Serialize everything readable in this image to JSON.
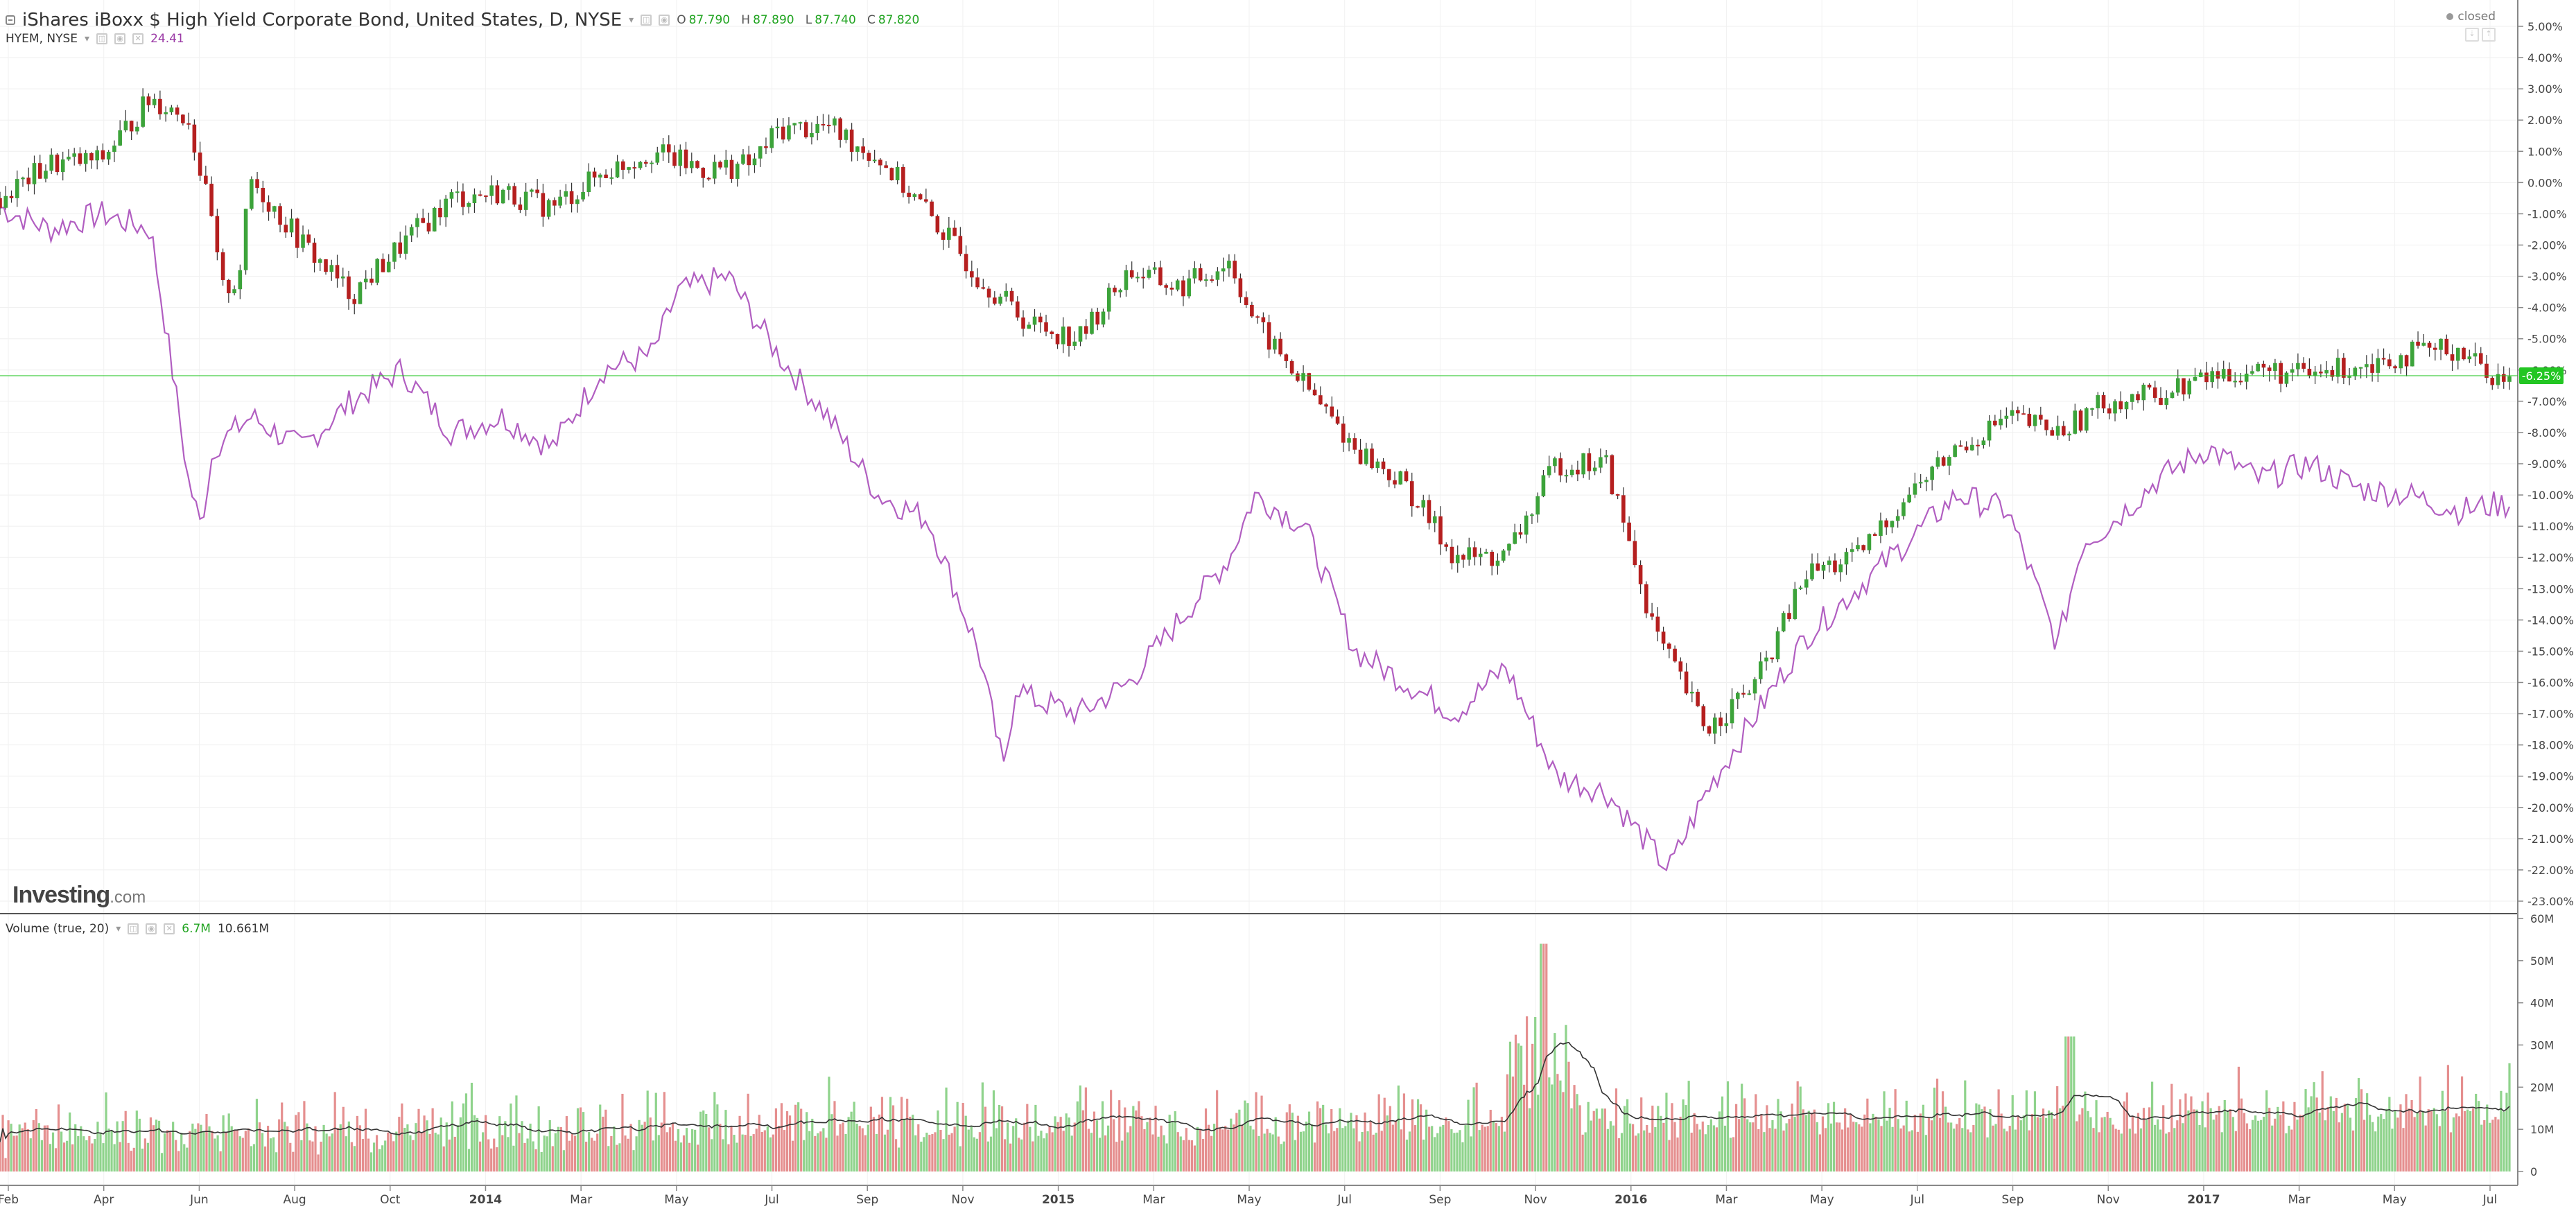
{
  "header": {
    "title": "iShares iBoxx $ High Yield Corporate Bond, United States, D, NYSE",
    "ohlc": [
      {
        "key": "O",
        "value": "87.790"
      },
      {
        "key": "H",
        "value": "87.890"
      },
      {
        "key": "L",
        "value": "87.740"
      },
      {
        "key": "C",
        "value": "87.820"
      }
    ],
    "compare_symbol": "HYEM, NYSE",
    "compare_value": "24.41",
    "status": "closed"
  },
  "volume_panel": {
    "label": "Volume (true, 20)",
    "value": "6.7M",
    "ma_value": "10.661M"
  },
  "branding": {
    "logo": "Investing",
    "logo_suffix": ".com"
  },
  "colors": {
    "up": "#3ca33a",
    "down": "#b51f1f",
    "compare_line": "#b15ec1",
    "vol_up": "#8fd38c",
    "vol_down": "#e58f8f",
    "last_price_bg": "#23c623"
  },
  "chart_data": {
    "type": "line",
    "price_axis": {
      "ticks": [
        "5.00%",
        "4.00%",
        "3.00%",
        "2.00%",
        "1.00%",
        "0.00%",
        "-1.00%",
        "-2.00%",
        "-3.00%",
        "-4.00%",
        "-5.00%",
        "-6.00%",
        "-7.00%",
        "-8.00%",
        "-9.00%",
        "-10.00%",
        "-11.00%",
        "-12.00%",
        "-13.00%",
        "-14.00%",
        "-15.00%",
        "-16.00%",
        "-17.00%",
        "-18.00%",
        "-19.00%",
        "-20.00%",
        "-21.00%",
        "-22.00%",
        "-23.00%"
      ],
      "last_label": "-6.25%",
      "last_value": -6.25
    },
    "volume_axis": {
      "ticks": [
        "60M",
        "50M",
        "40M",
        "30M",
        "20M",
        "10M",
        "0"
      ]
    },
    "time_axis": {
      "labels": [
        "Feb",
        "Apr",
        "Jun",
        "Aug",
        "Oct",
        "2014",
        "Mar",
        "May",
        "Jul",
        "Sep",
        "Nov",
        "2015",
        "Mar",
        "May",
        "Jul",
        "Sep",
        "Nov",
        "2016",
        "Mar",
        "May",
        "Jul",
        "Sep",
        "Nov",
        "2017",
        "Mar",
        "May",
        "Jul"
      ],
      "bold": [
        "2014",
        "2015",
        "2016",
        "2017"
      ]
    },
    "series": [
      {
        "name": "iShares iBoxx $ High Yield Corporate Bond",
        "style": "candlestick",
        "x": [
          0,
          0.02,
          0.04,
          0.06,
          0.075,
          0.085,
          0.088,
          0.095,
          0.1,
          0.12,
          0.14,
          0.16,
          0.18,
          0.2,
          0.22,
          0.24,
          0.26,
          0.28,
          0.3,
          0.31,
          0.33,
          0.35,
          0.37,
          0.39,
          0.41,
          0.43,
          0.45,
          0.47,
          0.49,
          0.5,
          0.52,
          0.54,
          0.56,
          0.58,
          0.6,
          0.62,
          0.64,
          0.66,
          0.68,
          0.7,
          0.72,
          0.74,
          0.76,
          0.78,
          0.8,
          0.82,
          0.84,
          0.86,
          0.88,
          0.9,
          0.92,
          0.94,
          0.96,
          0.98,
          0.995
        ],
        "values": [
          -0.5,
          0.6,
          0.7,
          2.7,
          2.1,
          -1.5,
          -3.5,
          -3.1,
          0.1,
          -1.9,
          -3.6,
          -2.0,
          -0.5,
          -0.3,
          -0.8,
          0.3,
          1.0,
          0.4,
          0.6,
          1.7,
          1.8,
          0.8,
          -1.0,
          -3.0,
          -4.5,
          -5.0,
          -2.8,
          -3.4,
          -2.5,
          -4.5,
          -6.5,
          -8.5,
          -9.7,
          -12.0,
          -12.0,
          -9.0,
          -9.0,
          -14.5,
          -17.5,
          -16.0,
          -12.5,
          -12.0,
          -10.0,
          -8.5,
          -7.5,
          -8.0,
          -7.0,
          -6.8,
          -6.2,
          -6.0,
          -6.2,
          -5.8,
          -5.5,
          -5.3,
          -6.25
        ]
      },
      {
        "name": "HYEM, NYSE",
        "style": "line",
        "x": [
          0,
          0.02,
          0.04,
          0.06,
          0.07,
          0.075,
          0.08,
          0.085,
          0.1,
          0.12,
          0.14,
          0.16,
          0.18,
          0.2,
          0.22,
          0.24,
          0.26,
          0.27,
          0.29,
          0.31,
          0.33,
          0.35,
          0.37,
          0.39,
          0.4,
          0.405,
          0.41,
          0.43,
          0.45,
          0.47,
          0.49,
          0.5,
          0.52,
          0.54,
          0.56,
          0.58,
          0.6,
          0.62,
          0.64,
          0.655,
          0.665,
          0.68,
          0.7,
          0.72,
          0.74,
          0.76,
          0.78,
          0.8,
          0.82,
          0.83,
          0.84,
          0.86,
          0.88,
          0.9,
          0.92,
          0.94,
          0.96,
          0.98,
          0.995
        ],
        "values": [
          -0.8,
          -1.5,
          -1.0,
          -1.5,
          -6.7,
          -9.5,
          -11.0,
          -8.5,
          -7.5,
          -8.5,
          -7.0,
          -6.0,
          -8.0,
          -7.5,
          -8.5,
          -6.0,
          -5.5,
          -3.5,
          -3.0,
          -5.5,
          -7.5,
          -10.0,
          -10.8,
          -15.0,
          -18.8,
          -16.0,
          -16.5,
          -17.0,
          -16.0,
          -14.0,
          -12.0,
          -10.0,
          -11.0,
          -15.0,
          -16.0,
          -17.0,
          -15.5,
          -19.0,
          -19.5,
          -21.0,
          -22.0,
          -19.5,
          -17.0,
          -14.5,
          -13.0,
          -11.5,
          -10.0,
          -10.5,
          -14.8,
          -11.5,
          -11.0,
          -9.5,
          -8.5,
          -9.5,
          -9.0,
          -9.8,
          -10.0,
          -10.5,
          -10.3
        ]
      }
    ]
  }
}
